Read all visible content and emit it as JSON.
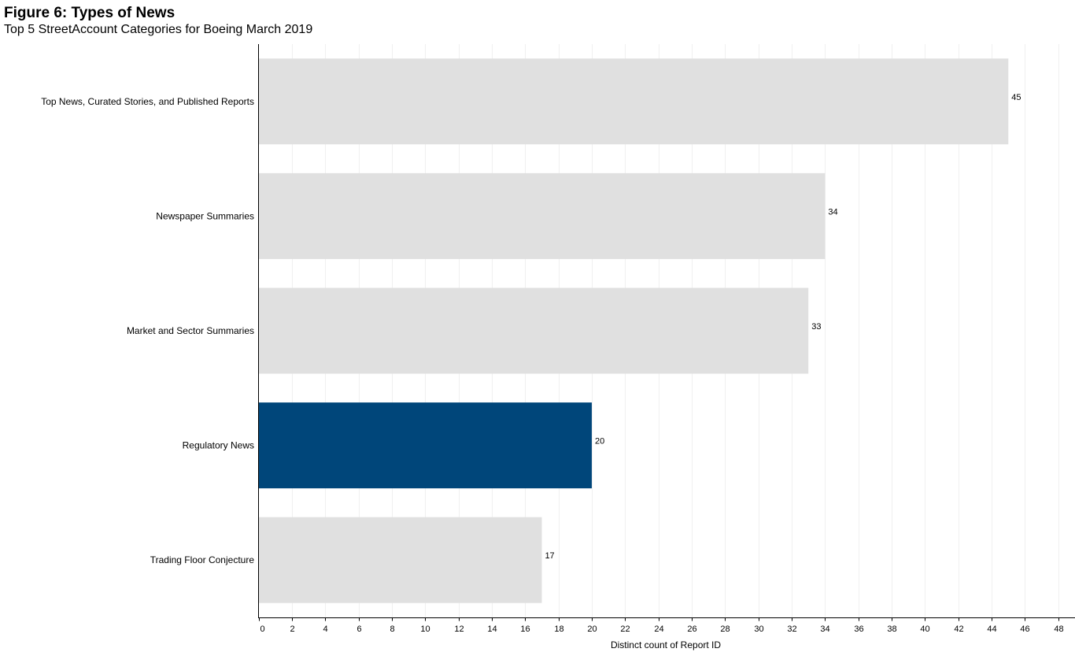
{
  "figure": {
    "title": "Figure 6: Types of News",
    "subtitle": "Top 5 StreetAccount Categories for Boeing March 2019"
  },
  "chart_data": {
    "type": "bar",
    "orientation": "horizontal",
    "categories": [
      "Top News, Curated Stories, and Published Reports",
      "Newspaper Summaries",
      "Market and Sector Summaries",
      "Regulatory News",
      "Trading Floor Conjecture"
    ],
    "values": [
      45,
      34,
      33,
      20,
      17
    ],
    "highlight_category": "Regulatory News",
    "xlabel": "Distinct count of Report ID",
    "ylabel": "",
    "xlim": [
      0,
      49
    ],
    "xticks": [
      0,
      2,
      4,
      6,
      8,
      10,
      12,
      14,
      16,
      18,
      20,
      22,
      24,
      26,
      28,
      30,
      32,
      34,
      36,
      38,
      40,
      42,
      44,
      46,
      48
    ],
    "grid": "vertical",
    "data_labels": true,
    "colors": {
      "bar": "#e0e0e0",
      "highlight": "#00467a",
      "grid": "#f0f0f0",
      "axis": "#000000"
    }
  }
}
